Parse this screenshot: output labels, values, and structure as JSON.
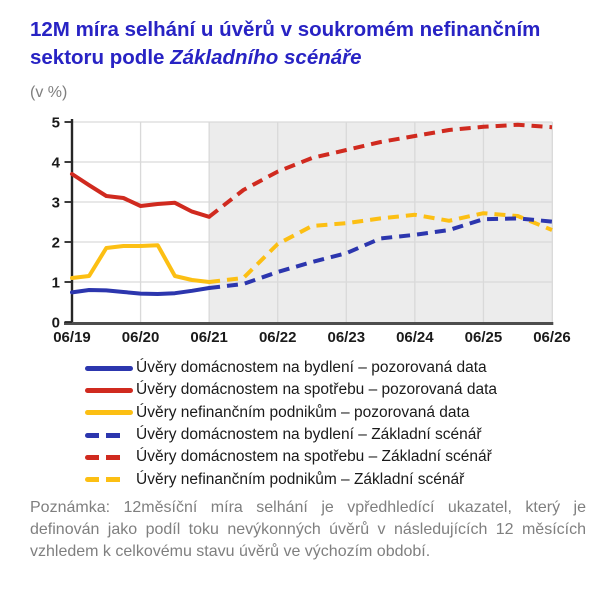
{
  "title": {
    "line1": "12M míra selhání u úvěrů v soukromém nefinančním",
    "line2_normal": "sektoru podle ",
    "line2_italic": "Základního scénáře"
  },
  "subtitle": "(v %)",
  "note": "Poznámka: 12měsíční míra selhání je vpředhledící ukazatel, který je definován jako podíl toku nevýkonných úvěrů v následujících 12 měsících vzhledem k celkovému stavu úvěrů ve výchozím období.",
  "colors": {
    "title_blue": "#2823c4",
    "text_gray": "#7f7f7f",
    "tick_text": "#1a1a1a",
    "line_blue": "#2c36ae",
    "line_red": "#d02a1f",
    "line_yellow": "#fcbf13",
    "forecast_shade": "#ececec",
    "gridline": "#d9d9d9",
    "x_axis": "#4d4d4d",
    "y_axis": "#262626"
  },
  "chart_data": {
    "type": "line",
    "title": "12M míra selhání u úvěrů v soukromém nefinančním sektoru podle Základního scénáře",
    "ylabel": "(v %)",
    "ylim": [
      0,
      5
    ],
    "grid": true,
    "legend_position": "bottom",
    "yticks": [
      0,
      1,
      2,
      3,
      4,
      5
    ],
    "xticks": [
      "06/19",
      "06/20",
      "06/21",
      "06/22",
      "06/23",
      "06/24",
      "06/25",
      "06/26"
    ],
    "forecast_region": {
      "from": "06/21",
      "to": "06/26",
      "note": "shaded scenario period"
    },
    "series": [
      {
        "name": "Úvěry domácnostem na bydlení – pozorovaná data",
        "color": "#2c36ae",
        "style": "solid",
        "x": [
          2019.5,
          2019.75,
          2020.0,
          2020.25,
          2020.5,
          2020.75,
          2021.0,
          2021.25,
          2021.5
        ],
        "y": [
          0.74,
          0.8,
          0.79,
          0.75,
          0.71,
          0.7,
          0.72,
          0.78,
          0.85
        ]
      },
      {
        "name": "Úvěry domácnostem na spotřebu – pozorovaná data",
        "color": "#d02a1f",
        "style": "solid",
        "x": [
          2019.5,
          2019.75,
          2020.0,
          2020.25,
          2020.5,
          2020.75,
          2021.0,
          2021.25,
          2021.5
        ],
        "y": [
          3.7,
          3.42,
          3.15,
          3.1,
          2.9,
          2.95,
          2.98,
          2.76,
          2.63
        ]
      },
      {
        "name": "Úvěry nefinančním podnikům – pozorovaná data",
        "color": "#fcbf13",
        "style": "solid",
        "x": [
          2019.5,
          2019.75,
          2020.0,
          2020.25,
          2020.5,
          2020.75,
          2021.0,
          2021.25,
          2021.5
        ],
        "y": [
          1.1,
          1.15,
          1.85,
          1.9,
          1.9,
          1.92,
          1.15,
          1.05,
          1.0
        ]
      },
      {
        "name": "Úvěry domácnostem na bydlení – Základní scénář",
        "color": "#2c36ae",
        "style": "dashed",
        "x": [
          2021.5,
          2022.0,
          2022.5,
          2023.0,
          2023.5,
          2024.0,
          2024.5,
          2025.0,
          2025.5,
          2026.0,
          2026.5
        ],
        "y": [
          0.85,
          0.95,
          1.25,
          1.5,
          1.72,
          2.09,
          2.18,
          2.3,
          2.57,
          2.59,
          2.51
        ]
      },
      {
        "name": "Úvěry domácnostem na spotřebu – Základní scénář",
        "color": "#d02a1f",
        "style": "dashed",
        "x": [
          2021.5,
          2022.0,
          2022.5,
          2023.0,
          2023.5,
          2024.0,
          2024.5,
          2025.0,
          2025.5,
          2026.0,
          2026.5
        ],
        "y": [
          2.63,
          3.3,
          3.76,
          4.1,
          4.3,
          4.5,
          4.65,
          4.8,
          4.88,
          4.93,
          4.87
        ]
      },
      {
        "name": "Úvěry nefinančním podnikům – Základní scénář",
        "color": "#fcbf13",
        "style": "dashed",
        "x": [
          2021.5,
          2022.0,
          2022.5,
          2023.0,
          2023.5,
          2024.0,
          2024.5,
          2025.0,
          2025.5,
          2026.0,
          2026.5
        ],
        "y": [
          1.0,
          1.1,
          1.95,
          2.4,
          2.47,
          2.59,
          2.68,
          2.53,
          2.72,
          2.65,
          2.3
        ]
      }
    ]
  }
}
